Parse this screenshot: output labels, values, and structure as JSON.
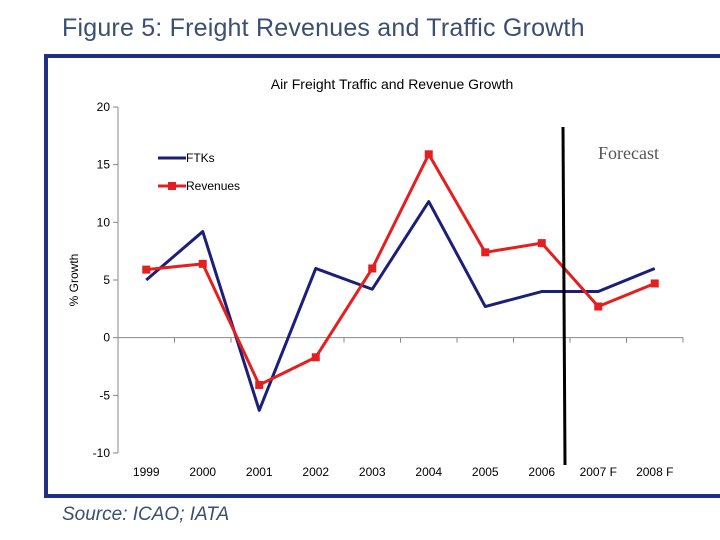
{
  "figure_title": "Figure 5: Freight Revenues and Traffic Growth",
  "source": "Source: ICAO; IATA",
  "colors": {
    "ftks": "#1c1f7a",
    "revenues": "#e31f1f",
    "frame": "#1e2f86",
    "heading": "#3a4f72"
  },
  "chart_data": {
    "type": "line",
    "title": "Air Freight Traffic and Revenue Growth",
    "xlabel": "",
    "ylabel": "% Growth",
    "categories": [
      "1999",
      "2000",
      "2001",
      "2002",
      "2003",
      "2004",
      "2005",
      "2006",
      "2007 F",
      "2008 F"
    ],
    "ylim": [
      -10,
      20
    ],
    "yticks": [
      20,
      15,
      10,
      5,
      0,
      -5,
      -10
    ],
    "series": [
      {
        "name": "FTKs",
        "color": "#1c1f7a",
        "marker": "none",
        "values": [
          5.0,
          9.2,
          -6.3,
          6.0,
          4.2,
          11.8,
          2.7,
          4.0,
          4.0,
          6.0
        ]
      },
      {
        "name": "Revenues",
        "color": "#e31f1f",
        "marker": "square",
        "values": [
          5.9,
          6.4,
          -4.1,
          -1.7,
          6.0,
          15.9,
          7.4,
          8.2,
          2.7,
          4.7
        ]
      }
    ],
    "legend": "top-left",
    "annotation": {
      "text": "Forecast",
      "divider_between": [
        "2006",
        "2007 F"
      ]
    }
  }
}
